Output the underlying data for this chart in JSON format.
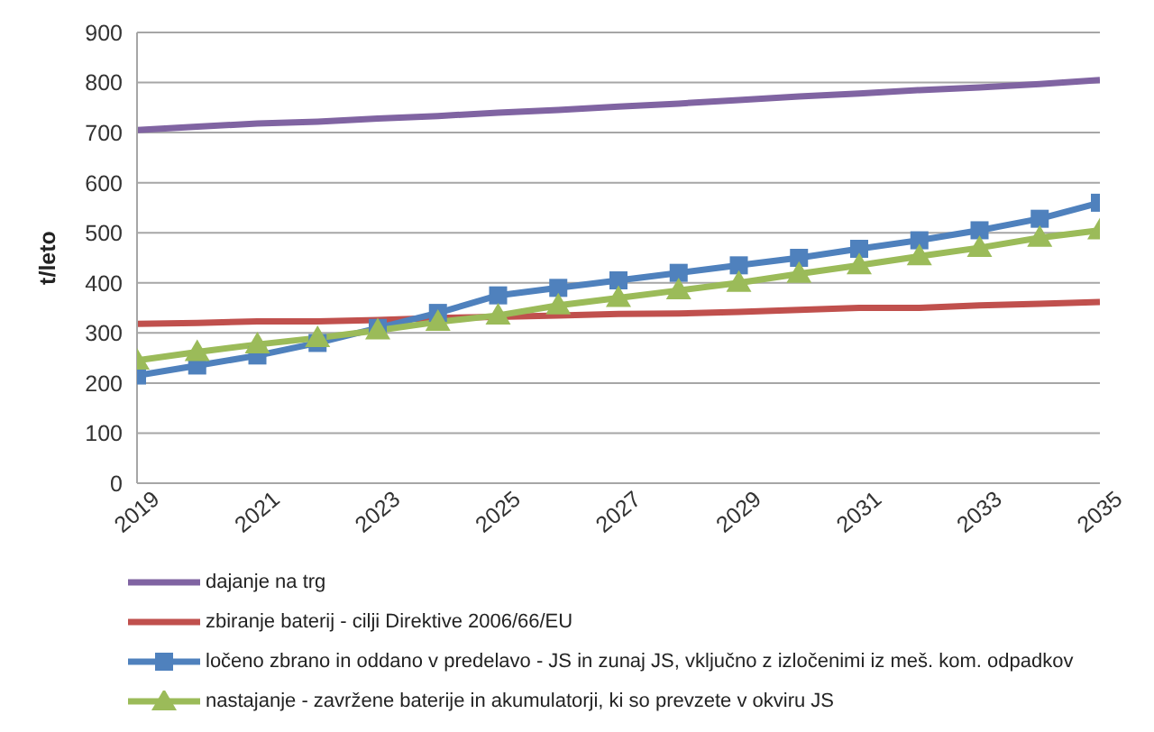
{
  "chart_data": {
    "type": "line",
    "ylabel": "t/leto",
    "x": [
      2019,
      2020,
      2021,
      2022,
      2023,
      2024,
      2025,
      2026,
      2027,
      2028,
      2029,
      2030,
      2031,
      2032,
      2033,
      2034,
      2035
    ],
    "xlim": [
      2019,
      2035
    ],
    "xticks": [
      2019,
      2021,
      2023,
      2025,
      2027,
      2029,
      2031,
      2033,
      2035
    ],
    "ylim": [
      0,
      900
    ],
    "yticks": [
      0,
      100,
      200,
      300,
      400,
      500,
      600,
      700,
      800,
      900
    ],
    "grid": "y",
    "legend": "bottom",
    "series": [
      {
        "name": "dajanje na trg",
        "color": "#8064a2",
        "marker": "none",
        "values": [
          705,
          712,
          718,
          722,
          728,
          733,
          740,
          745,
          752,
          758,
          765,
          772,
          778,
          785,
          790,
          797,
          805
        ]
      },
      {
        "name": "zbiranje baterij - cilji Direktive 2006/66/EU",
        "color": "#c0504d",
        "marker": "none",
        "values": [
          318,
          320,
          323,
          323,
          326,
          330,
          332,
          335,
          338,
          339,
          342,
          346,
          350,
          350,
          355,
          358,
          362
        ]
      },
      {
        "name": "ločeno zbrano in oddano v predelavo - JS in zunaj JS, vključno z izločenimi iz meš. kom. odpadkov",
        "color": "#4f81bd",
        "marker": "square",
        "values": [
          215,
          235,
          255,
          280,
          310,
          340,
          375,
          390,
          405,
          420,
          435,
          450,
          468,
          485,
          505,
          528,
          560
        ]
      },
      {
        "name": "nastajanje - zavržene baterije in akumulatorji, ki so prevzete v okviru JS",
        "color": "#9bbb59",
        "marker": "triangle",
        "values": [
          245,
          262,
          277,
          290,
          305,
          322,
          335,
          355,
          370,
          385,
          400,
          418,
          435,
          453,
          470,
          490,
          505
        ]
      }
    ]
  }
}
